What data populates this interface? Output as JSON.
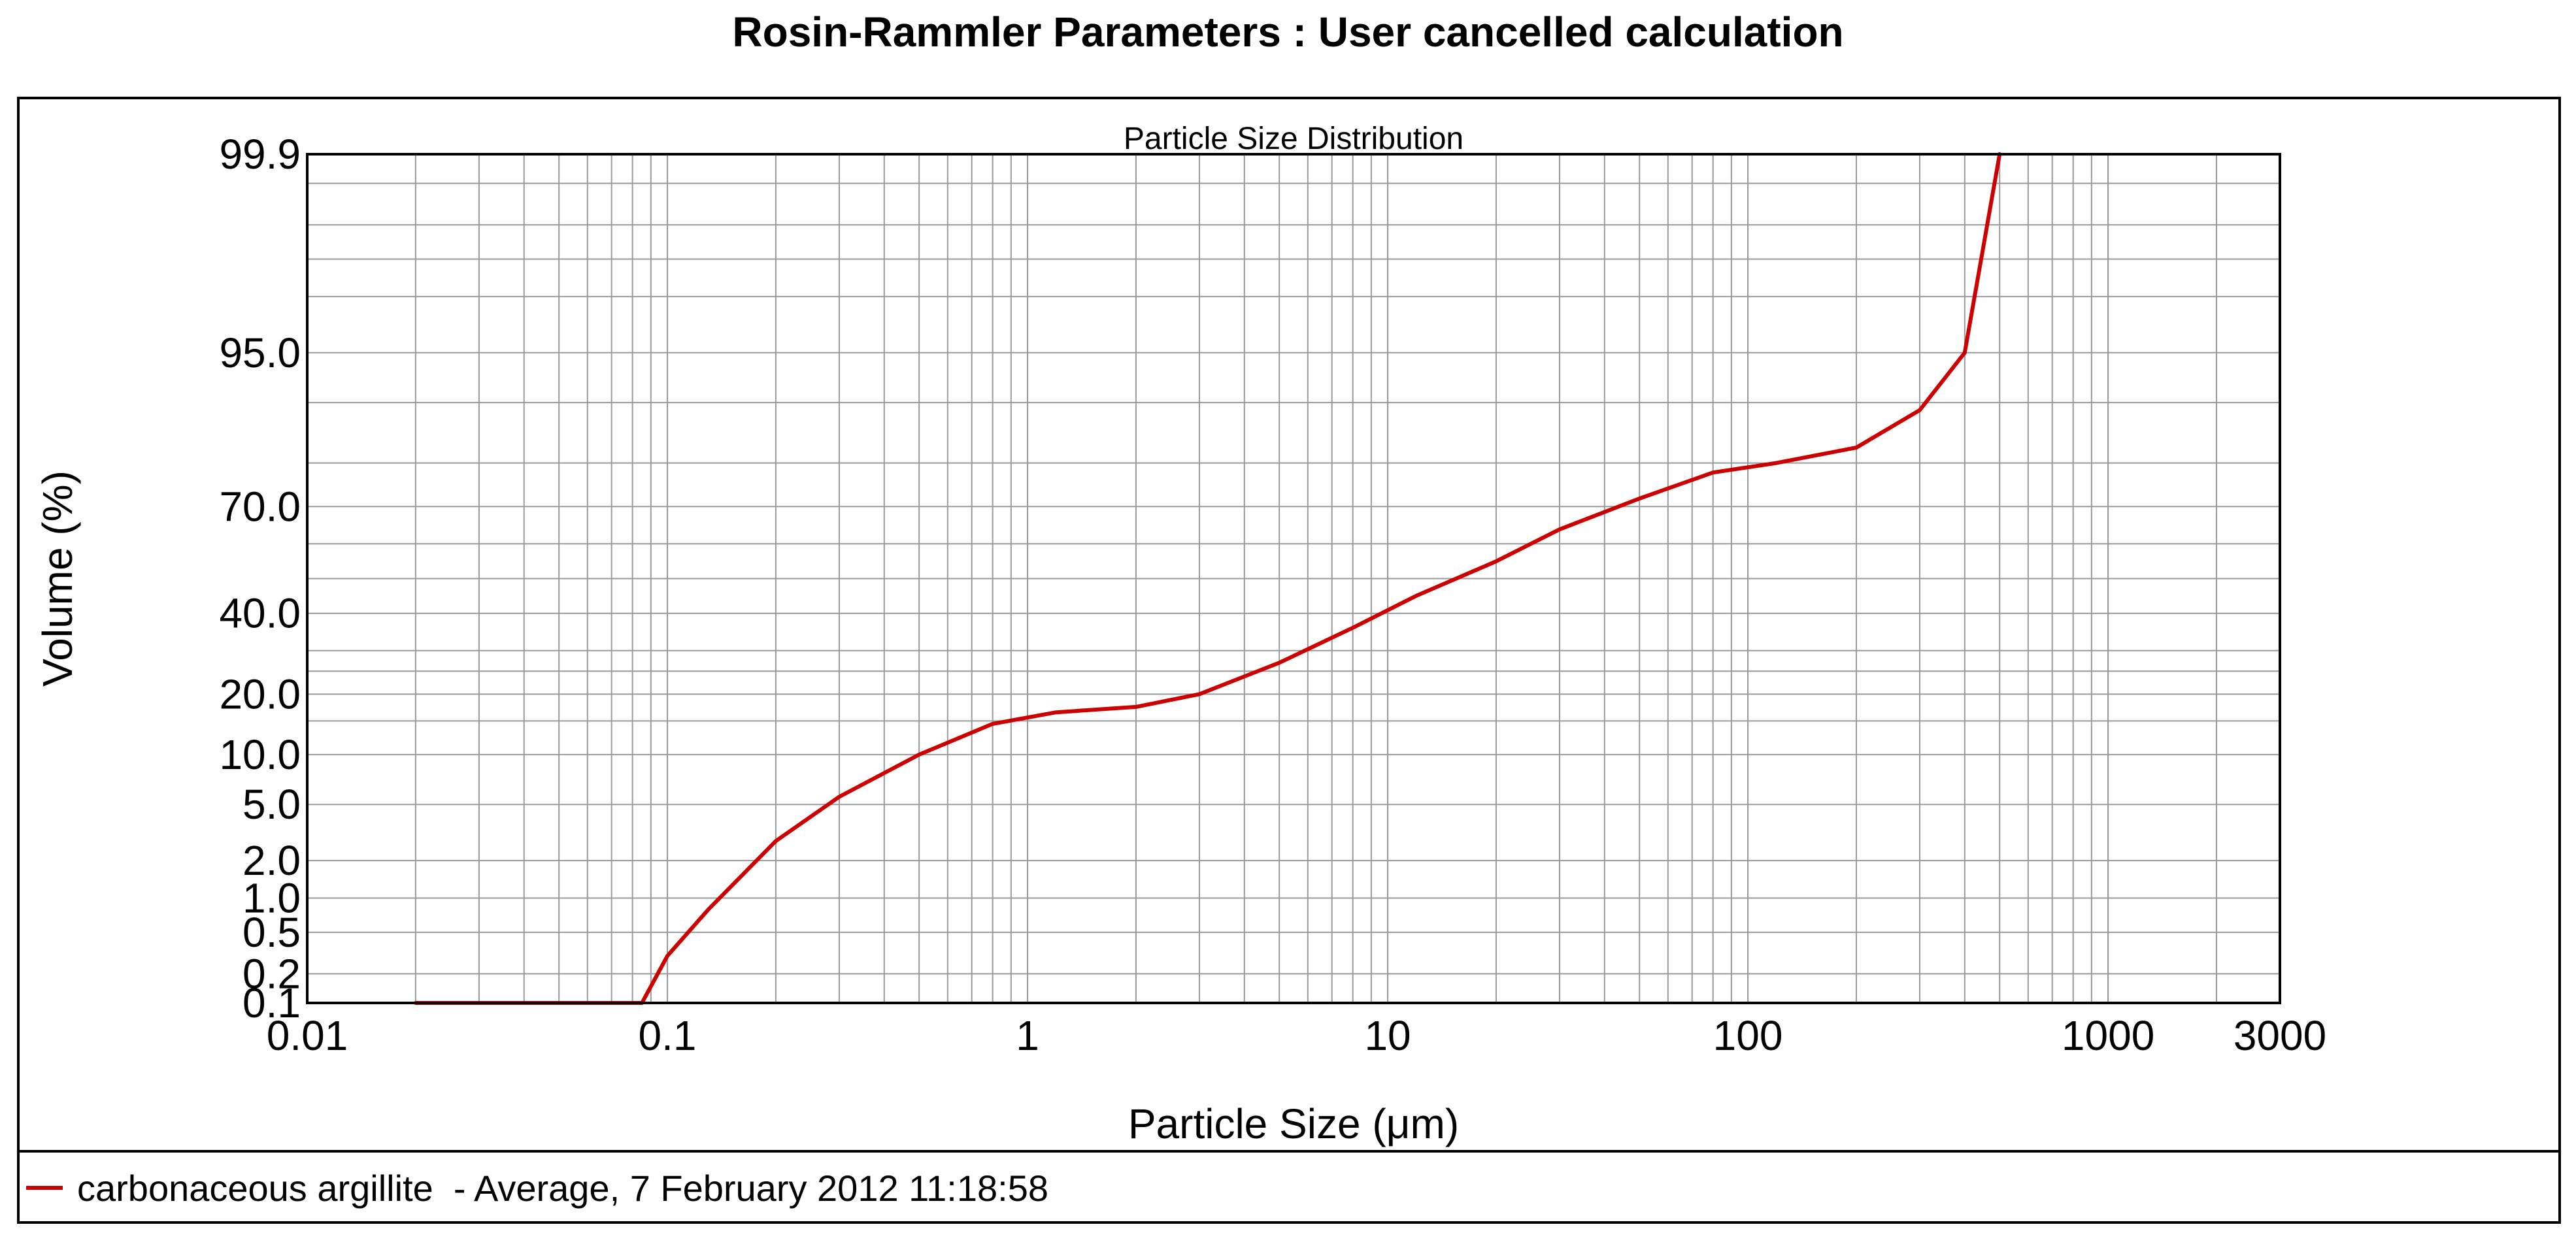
{
  "page_title": "Rosin-Rammler Parameters : User cancelled calculation",
  "colors": {
    "series": "#cc0000",
    "grid": "#9a9a9a",
    "axes": "#000000",
    "background": "#ffffff"
  },
  "chart_data": {
    "type": "line",
    "title": "Particle Size Distribution",
    "xlabel": "Particle Size (μm)",
    "ylabel": "Volume (%)",
    "x_scale": "log",
    "y_scale": "probability",
    "xlim": [
      0.01,
      3000
    ],
    "ylim": [
      0.1,
      99.9
    ],
    "x_ticks": [
      0.01,
      0.1,
      1,
      10,
      100,
      1000,
      3000
    ],
    "x_tick_labels": [
      "0.01",
      "0.1",
      "1",
      "10",
      "100",
      "1000",
      "3000"
    ],
    "y_ticks": [
      0.1,
      0.2,
      0.5,
      1.0,
      2.0,
      5.0,
      10.0,
      20.0,
      40.0,
      70.0,
      95.0,
      99.9
    ],
    "y_tick_labels": [
      "0.1",
      "0.2",
      "0.5",
      "1.0",
      "2.0",
      "5.0",
      "10.0",
      "20.0",
      "40.0",
      "70.0",
      "95.0",
      "99.9"
    ],
    "grid": true,
    "legend_position": "bottom",
    "series": [
      {
        "name": "carbonaceous argillite  - Average, 7 February 2012 11:18:58",
        "color": "#cc0000",
        "x": [
          0.02,
          0.04,
          0.06,
          0.085,
          0.1,
          0.13,
          0.2,
          0.3,
          0.5,
          0.8,
          1.2,
          2.0,
          3.0,
          5.0,
          8.0,
          12.0,
          20.0,
          30.0,
          50.0,
          80.0,
          120.0,
          200.0,
          300.0,
          400.0,
          500.0
        ],
        "y": [
          0.1,
          0.1,
          0.1,
          0.1,
          0.3,
          0.8,
          2.8,
          5.6,
          10.0,
          14.5,
          16.5,
          17.5,
          20.0,
          27.0,
          36.0,
          45.0,
          55.0,
          64.0,
          72.0,
          78.0,
          80.0,
          83.0,
          89.0,
          95.0,
          99.9
        ]
      }
    ]
  }
}
